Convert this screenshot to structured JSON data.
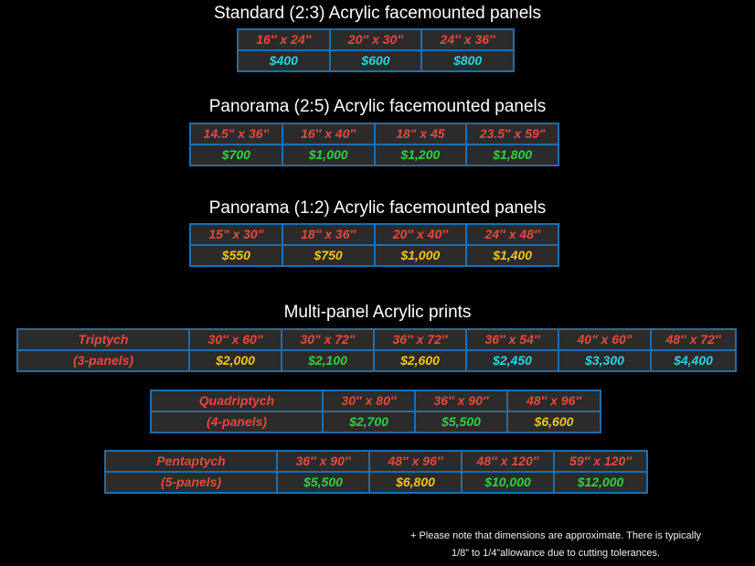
{
  "standard": {
    "title": "Standard (2:3) Acrylic facemounted panels",
    "sizes": [
      "16″ x 24″",
      "20″ x 30″",
      "24″ x 36″"
    ],
    "prices": [
      "$400",
      "$600",
      "$800"
    ],
    "price_color": "#21d4e0"
  },
  "panorama25": {
    "title": "Panorama (2:5) Acrylic facemounted panels",
    "sizes": [
      "14.5\" x 36\"",
      "16″ x 40″",
      "18\" x 45",
      "23.5\" x 59\""
    ],
    "prices": [
      "$700",
      "$1,000",
      "$1,200",
      "$1,800"
    ],
    "price_color": "#2fcf3f"
  },
  "panorama12": {
    "title": "Panorama (1:2) Acrylic facemounted panels",
    "sizes": [
      "15\" x 30\"",
      "18″ x 36″",
      "20″ x 40″",
      "24″ x 48″"
    ],
    "prices": [
      "$550",
      "$750",
      "$1,000",
      "$1,400"
    ],
    "price_color": "#f2c21a"
  },
  "multi_title": "Multi-panel Acrylic prints",
  "triptych": {
    "name": "Triptych",
    "panels": "(3-panels)",
    "sizes": [
      "30″ x 60″",
      "30\" x 72\"",
      "36″ x 72″",
      "36″ x 54″",
      "40\" x 60\"",
      "48″ x 72″"
    ],
    "prices": [
      "$2,000",
      "$2,100",
      "$2,600",
      "$2,450",
      "$3,300",
      "$4,400"
    ],
    "price_colors": [
      "yellow",
      "green",
      "yellow",
      "cyan",
      "cyan",
      "cyan"
    ]
  },
  "quadriptych": {
    "name": "Quadriptych",
    "panels": "(4-panels)",
    "sizes": [
      "30″ x 80″",
      "36″ x 90″",
      "48″ x 96″"
    ],
    "prices": [
      "$2,700",
      "$5,500",
      "$6,600"
    ],
    "price_colors": [
      "green",
      "green",
      "yellow"
    ]
  },
  "pentaptych": {
    "name": "Pentaptych",
    "panels": "(5-panels)",
    "sizes": [
      "36″ x 90″",
      "48″ x 96″",
      "48″ x 120″",
      "59″ x 120″"
    ],
    "prices": [
      "$5,500",
      "$6,800",
      "$10,000",
      "$12,000"
    ],
    "price_colors": [
      "green",
      "yellow",
      "green",
      "green"
    ]
  },
  "note": {
    "line1": "+ Please note that dimensions are approximate. There is typically",
    "line2": "1/8” to 1/4”allowance due to cutting tolerances."
  }
}
